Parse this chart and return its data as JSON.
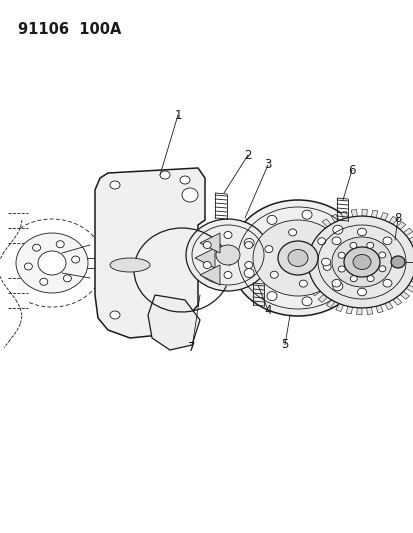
{
  "title": "91106  100A",
  "background_color": "#ffffff",
  "line_color": "#1a1a1a",
  "fig_width": 4.14,
  "fig_height": 5.33,
  "dpi": 100,
  "title_fontsize": 10.5,
  "label_fontsize": 8.5
}
